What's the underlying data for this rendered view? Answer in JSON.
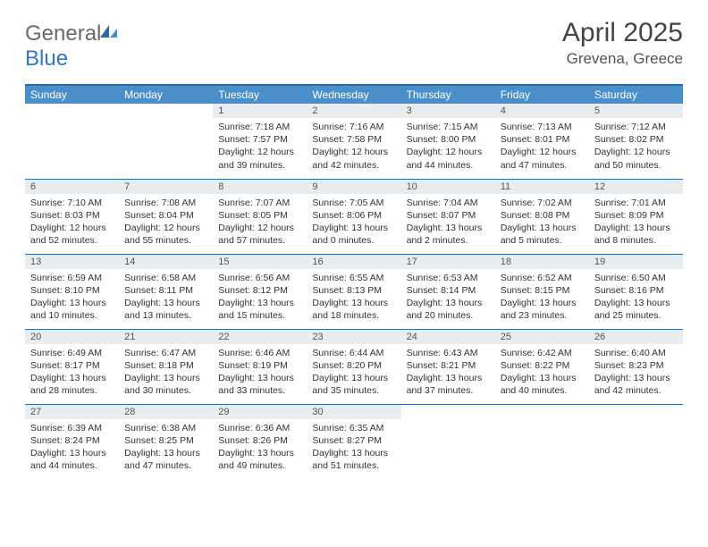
{
  "brand": {
    "part1": "General",
    "part2": "Blue"
  },
  "title": "April 2025",
  "location": "Grevena, Greece",
  "colors": {
    "header_bg": "#4a8fca",
    "header_border": "#2b6aa8",
    "daynum_bg": "#e9edf0",
    "text": "#333333",
    "logo_gray": "#6a6a6a",
    "logo_blue": "#3178bc"
  },
  "weekdays": [
    "Sunday",
    "Monday",
    "Tuesday",
    "Wednesday",
    "Thursday",
    "Friday",
    "Saturday"
  ],
  "weeks": [
    [
      null,
      null,
      {
        "n": "1",
        "sunrise": "7:18 AM",
        "sunset": "7:57 PM",
        "daylight": "12 hours and 39 minutes."
      },
      {
        "n": "2",
        "sunrise": "7:16 AM",
        "sunset": "7:58 PM",
        "daylight": "12 hours and 42 minutes."
      },
      {
        "n": "3",
        "sunrise": "7:15 AM",
        "sunset": "8:00 PM",
        "daylight": "12 hours and 44 minutes."
      },
      {
        "n": "4",
        "sunrise": "7:13 AM",
        "sunset": "8:01 PM",
        "daylight": "12 hours and 47 minutes."
      },
      {
        "n": "5",
        "sunrise": "7:12 AM",
        "sunset": "8:02 PM",
        "daylight": "12 hours and 50 minutes."
      }
    ],
    [
      {
        "n": "6",
        "sunrise": "7:10 AM",
        "sunset": "8:03 PM",
        "daylight": "12 hours and 52 minutes."
      },
      {
        "n": "7",
        "sunrise": "7:08 AM",
        "sunset": "8:04 PM",
        "daylight": "12 hours and 55 minutes."
      },
      {
        "n": "8",
        "sunrise": "7:07 AM",
        "sunset": "8:05 PM",
        "daylight": "12 hours and 57 minutes."
      },
      {
        "n": "9",
        "sunrise": "7:05 AM",
        "sunset": "8:06 PM",
        "daylight": "13 hours and 0 minutes."
      },
      {
        "n": "10",
        "sunrise": "7:04 AM",
        "sunset": "8:07 PM",
        "daylight": "13 hours and 2 minutes."
      },
      {
        "n": "11",
        "sunrise": "7:02 AM",
        "sunset": "8:08 PM",
        "daylight": "13 hours and 5 minutes."
      },
      {
        "n": "12",
        "sunrise": "7:01 AM",
        "sunset": "8:09 PM",
        "daylight": "13 hours and 8 minutes."
      }
    ],
    [
      {
        "n": "13",
        "sunrise": "6:59 AM",
        "sunset": "8:10 PM",
        "daylight": "13 hours and 10 minutes."
      },
      {
        "n": "14",
        "sunrise": "6:58 AM",
        "sunset": "8:11 PM",
        "daylight": "13 hours and 13 minutes."
      },
      {
        "n": "15",
        "sunrise": "6:56 AM",
        "sunset": "8:12 PM",
        "daylight": "13 hours and 15 minutes."
      },
      {
        "n": "16",
        "sunrise": "6:55 AM",
        "sunset": "8:13 PM",
        "daylight": "13 hours and 18 minutes."
      },
      {
        "n": "17",
        "sunrise": "6:53 AM",
        "sunset": "8:14 PM",
        "daylight": "13 hours and 20 minutes."
      },
      {
        "n": "18",
        "sunrise": "6:52 AM",
        "sunset": "8:15 PM",
        "daylight": "13 hours and 23 minutes."
      },
      {
        "n": "19",
        "sunrise": "6:50 AM",
        "sunset": "8:16 PM",
        "daylight": "13 hours and 25 minutes."
      }
    ],
    [
      {
        "n": "20",
        "sunrise": "6:49 AM",
        "sunset": "8:17 PM",
        "daylight": "13 hours and 28 minutes."
      },
      {
        "n": "21",
        "sunrise": "6:47 AM",
        "sunset": "8:18 PM",
        "daylight": "13 hours and 30 minutes."
      },
      {
        "n": "22",
        "sunrise": "6:46 AM",
        "sunset": "8:19 PM",
        "daylight": "13 hours and 33 minutes."
      },
      {
        "n": "23",
        "sunrise": "6:44 AM",
        "sunset": "8:20 PM",
        "daylight": "13 hours and 35 minutes."
      },
      {
        "n": "24",
        "sunrise": "6:43 AM",
        "sunset": "8:21 PM",
        "daylight": "13 hours and 37 minutes."
      },
      {
        "n": "25",
        "sunrise": "6:42 AM",
        "sunset": "8:22 PM",
        "daylight": "13 hours and 40 minutes."
      },
      {
        "n": "26",
        "sunrise": "6:40 AM",
        "sunset": "8:23 PM",
        "daylight": "13 hours and 42 minutes."
      }
    ],
    [
      {
        "n": "27",
        "sunrise": "6:39 AM",
        "sunset": "8:24 PM",
        "daylight": "13 hours and 44 minutes."
      },
      {
        "n": "28",
        "sunrise": "6:38 AM",
        "sunset": "8:25 PM",
        "daylight": "13 hours and 47 minutes."
      },
      {
        "n": "29",
        "sunrise": "6:36 AM",
        "sunset": "8:26 PM",
        "daylight": "13 hours and 49 minutes."
      },
      {
        "n": "30",
        "sunrise": "6:35 AM",
        "sunset": "8:27 PM",
        "daylight": "13 hours and 51 minutes."
      },
      null,
      null,
      null
    ]
  ],
  "labels": {
    "sunrise": "Sunrise:",
    "sunset": "Sunset:",
    "daylight": "Daylight:"
  }
}
